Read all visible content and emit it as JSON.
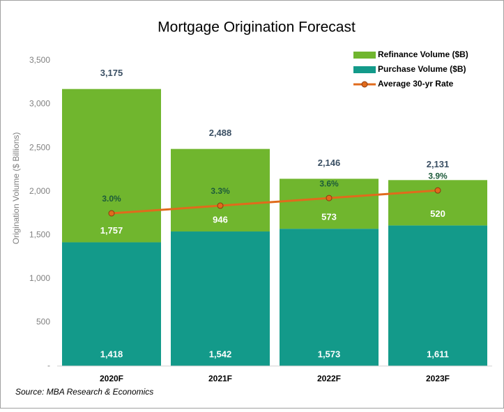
{
  "chart_data": {
    "type": "stacked-bar-line",
    "title": "Mortgage Origination Forecast",
    "y_label": "Origination Volume ($ Billions)",
    "source": "Source: MBA Research & Economics",
    "categories": [
      "2020F",
      "2021F",
      "2022F",
      "2023F"
    ],
    "series": [
      {
        "name": "Purchase Volume ($B)",
        "color": "#139a8a",
        "type": "bar",
        "values": [
          1418,
          1542,
          1573,
          1611
        ],
        "value_labels": [
          "1,418",
          "1,542",
          "1,573",
          "1,611"
        ]
      },
      {
        "name": "Refinance Volume ($B)",
        "color": "#70b62e",
        "type": "bar",
        "values": [
          1757,
          946,
          573,
          520
        ],
        "value_labels": [
          "1,757",
          "946",
          "573",
          "520"
        ]
      },
      {
        "name": "Average 30-yr Rate",
        "color": "#e06b1c",
        "type": "line",
        "axis": "y2",
        "values": [
          3.0,
          3.3,
          3.6,
          3.9
        ],
        "value_labels": [
          "3.0%",
          "3.3%",
          "3.6%",
          "3.9%"
        ]
      }
    ],
    "totals": {
      "values": [
        3175,
        2488,
        2146,
        2131
      ],
      "value_labels": [
        "3,175",
        "2,488",
        "2,146",
        "2,131"
      ]
    },
    "ylim": [
      0,
      3500
    ],
    "yticks": [
      {
        "value": 0,
        "label": "-"
      },
      {
        "value": 500,
        "label": "500"
      },
      {
        "value": 1000,
        "label": "1,000"
      },
      {
        "value": 1500,
        "label": "1,500"
      },
      {
        "value": 2000,
        "label": "2,000"
      },
      {
        "value": 2500,
        "label": "2,500"
      },
      {
        "value": 3000,
        "label": "3,000"
      },
      {
        "value": 3500,
        "label": "3,500"
      }
    ],
    "y2lim": [
      -3,
      9
    ],
    "legend": "top-right",
    "grid": false
  }
}
